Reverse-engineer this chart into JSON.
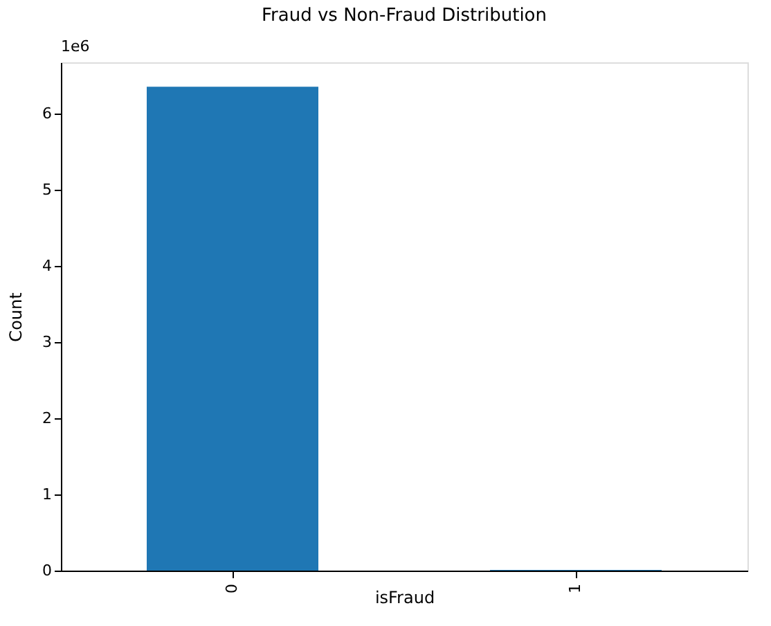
{
  "chart_data": {
    "type": "bar",
    "title": "Fraud vs Non-Fraud Distribution",
    "xlabel": "isFraud",
    "ylabel": "Count",
    "categories": [
      "0",
      "1"
    ],
    "values": [
      6.35,
      0.01
    ],
    "color": "#1f77b4",
    "ylim": [
      0,
      6.67
    ],
    "yticks": [
      0,
      1,
      2,
      3,
      4,
      5,
      6
    ],
    "annotations": [
      "1e6"
    ],
    "grid": false
  }
}
